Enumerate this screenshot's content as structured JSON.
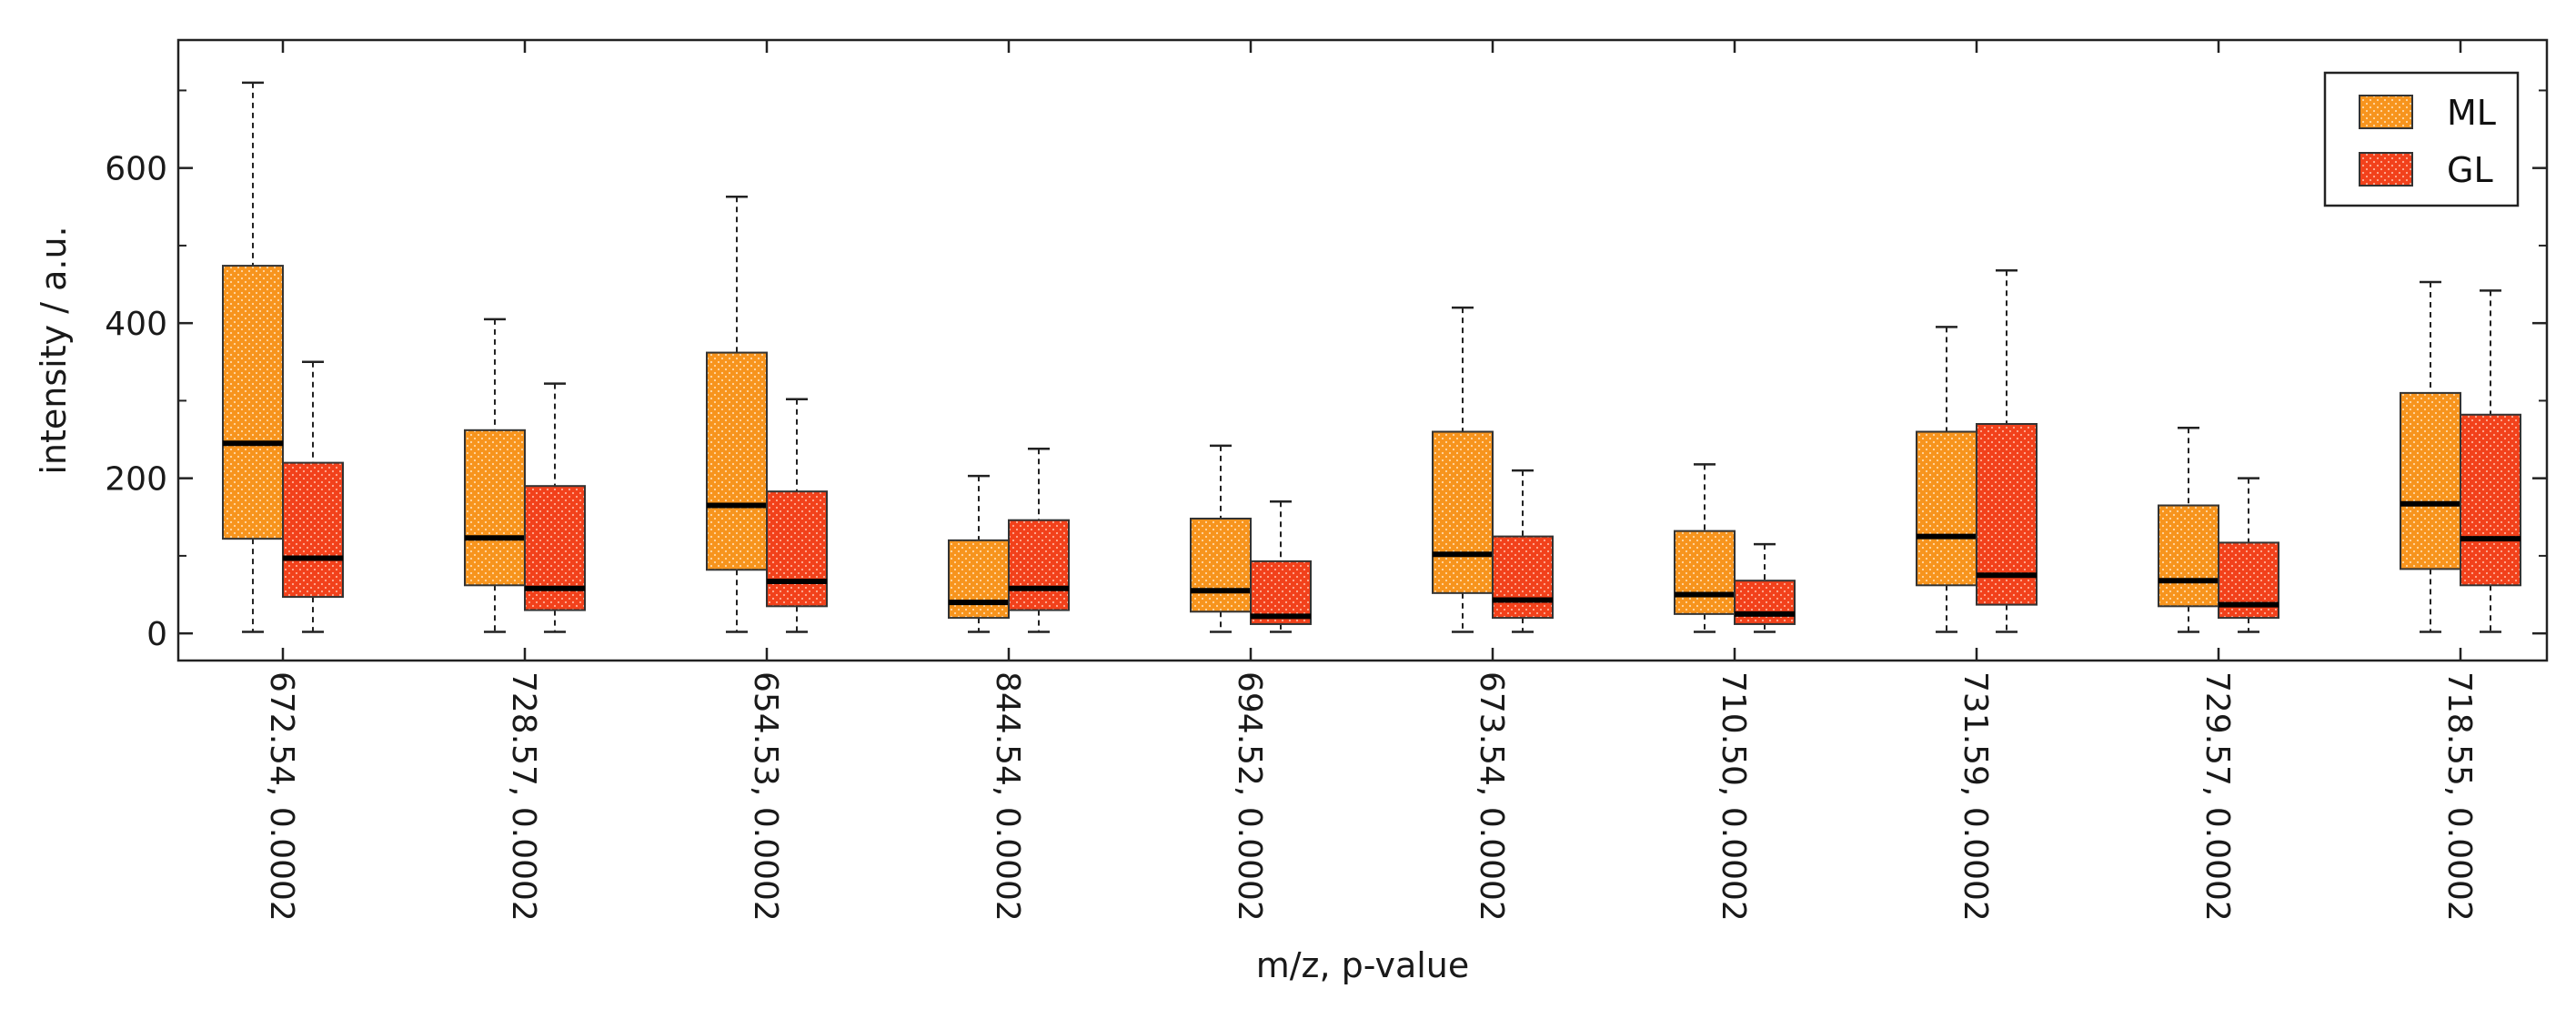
{
  "chart_data": {
    "type": "box",
    "xlabel": "m/z, p-value",
    "ylabel": "intensity / a.u.",
    "ylim": [
      -35,
      765
    ],
    "yticks": [
      0,
      200,
      400,
      600
    ],
    "grid": false,
    "legend_position": "top-right",
    "categories": [
      "672.54, 0.0002",
      "728.57, 0.0002",
      "654.53, 0.0002",
      "844.54, 0.0002",
      "694.52, 0.0002",
      "673.54, 0.0002",
      "710.50, 0.0002",
      "731.59, 0.0002",
      "729.57, 0.0002",
      "718.55, 0.0002"
    ],
    "series": [
      {
        "name": "ML",
        "color": "#F7941D",
        "pattern": "dotted",
        "boxes": [
          {
            "min": 2,
            "q1": 122,
            "median": 245,
            "q3": 474,
            "max": 710
          },
          {
            "min": 2,
            "q1": 62,
            "median": 123,
            "q3": 262,
            "max": 405
          },
          {
            "min": 2,
            "q1": 82,
            "median": 165,
            "q3": 362,
            "max": 563
          },
          {
            "min": 2,
            "q1": 20,
            "median": 40,
            "q3": 120,
            "max": 203
          },
          {
            "min": 2,
            "q1": 28,
            "median": 55,
            "q3": 148,
            "max": 242
          },
          {
            "min": 2,
            "q1": 52,
            "median": 102,
            "q3": 260,
            "max": 420
          },
          {
            "min": 2,
            "q1": 25,
            "median": 50,
            "q3": 132,
            "max": 218
          },
          {
            "min": 2,
            "q1": 62,
            "median": 125,
            "q3": 260,
            "max": 395
          },
          {
            "min": 2,
            "q1": 35,
            "median": 68,
            "q3": 165,
            "max": 265
          },
          {
            "min": 2,
            "q1": 83,
            "median": 167,
            "q3": 310,
            "max": 453
          }
        ]
      },
      {
        "name": "GL",
        "color": "#F2411B",
        "pattern": "dotted",
        "boxes": [
          {
            "min": 2,
            "q1": 47,
            "median": 97,
            "q3": 220,
            "max": 350
          },
          {
            "min": 2,
            "q1": 30,
            "median": 58,
            "q3": 190,
            "max": 322
          },
          {
            "min": 2,
            "q1": 35,
            "median": 67,
            "q3": 183,
            "max": 302
          },
          {
            "min": 2,
            "q1": 30,
            "median": 58,
            "q3": 146,
            "max": 238
          },
          {
            "min": 2,
            "q1": 12,
            "median": 22,
            "q3": 93,
            "max": 170
          },
          {
            "min": 2,
            "q1": 20,
            "median": 43,
            "q3": 125,
            "max": 210
          },
          {
            "min": 2,
            "q1": 12,
            "median": 25,
            "q3": 68,
            "max": 115
          },
          {
            "min": 2,
            "q1": 37,
            "median": 75,
            "q3": 270,
            "max": 468
          },
          {
            "min": 2,
            "q1": 20,
            "median": 37,
            "q3": 117,
            "max": 200
          },
          {
            "min": 2,
            "q1": 62,
            "median": 122,
            "q3": 282,
            "max": 442
          }
        ]
      }
    ]
  }
}
